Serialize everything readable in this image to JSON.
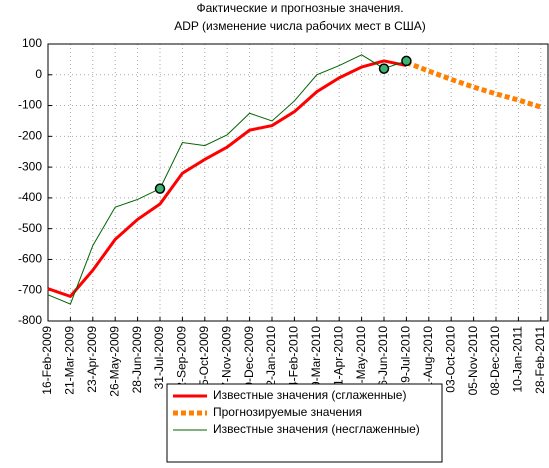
{
  "chart_data": {
    "type": "line",
    "title": "Фактические и прогнозные значения.",
    "subtitle": "ADP (изменение числа рабочих мест в США)",
    "categories": [
      "16-Feb-2009",
      "21-Mar-2009",
      "23-Apr-2009",
      "26-May-2009",
      "28-Jun-2009",
      "31-Jul-2009",
      "02-Sep-2009",
      "05-Oct-2009",
      "07-Nov-2009",
      "10-Dec-2009",
      "12-Jan-2010",
      "14-Feb-2010",
      "19-Mar-2010",
      "21-Apr-2010",
      "24-May-2010",
      "26-Jun-2010",
      "29-Jul-2010",
      "31-Aug-2010",
      "03-Oct-2010",
      "05-Nov-2010",
      "08-Dec-2010",
      "10-Jan-2011",
      "28-Feb-2011"
    ],
    "series": [
      {
        "name": "Известные значения (сглаженные)",
        "color": "#ff0000",
        "style": "solid",
        "width": 3,
        "values": [
          -695,
          -720,
          -635,
          -535,
          -470,
          -420,
          -320,
          -275,
          -235,
          -180,
          -165,
          -120,
          -55,
          -10,
          25,
          45,
          30,
          null,
          null,
          null,
          null,
          null,
          null
        ]
      },
      {
        "name": "Прогнозируемые значения",
        "color": "#ff8000",
        "style": "dashed",
        "width": 5,
        "values": [
          null,
          null,
          null,
          null,
          null,
          null,
          null,
          null,
          null,
          null,
          null,
          null,
          null,
          null,
          null,
          null,
          40,
          12,
          -15,
          -40,
          -62,
          -82,
          -105
        ]
      },
      {
        "name": "Известные значения (несглаженные)",
        "color": "#006400",
        "style": "solid",
        "width": 1,
        "values": [
          -715,
          -745,
          -555,
          -430,
          -405,
          -370,
          -220,
          -230,
          -195,
          -125,
          -150,
          -85,
          0,
          30,
          65,
          20,
          45,
          null,
          null,
          null,
          null,
          null,
          null
        ],
        "highlighted": [
          5,
          15,
          16
        ]
      }
    ],
    "ylim": [
      -800,
      100
    ],
    "yticks": [
      100,
      0,
      -100,
      -200,
      -300,
      -400,
      -500,
      -600,
      -700,
      -800
    ],
    "grid": true,
    "legend": "bottom"
  }
}
